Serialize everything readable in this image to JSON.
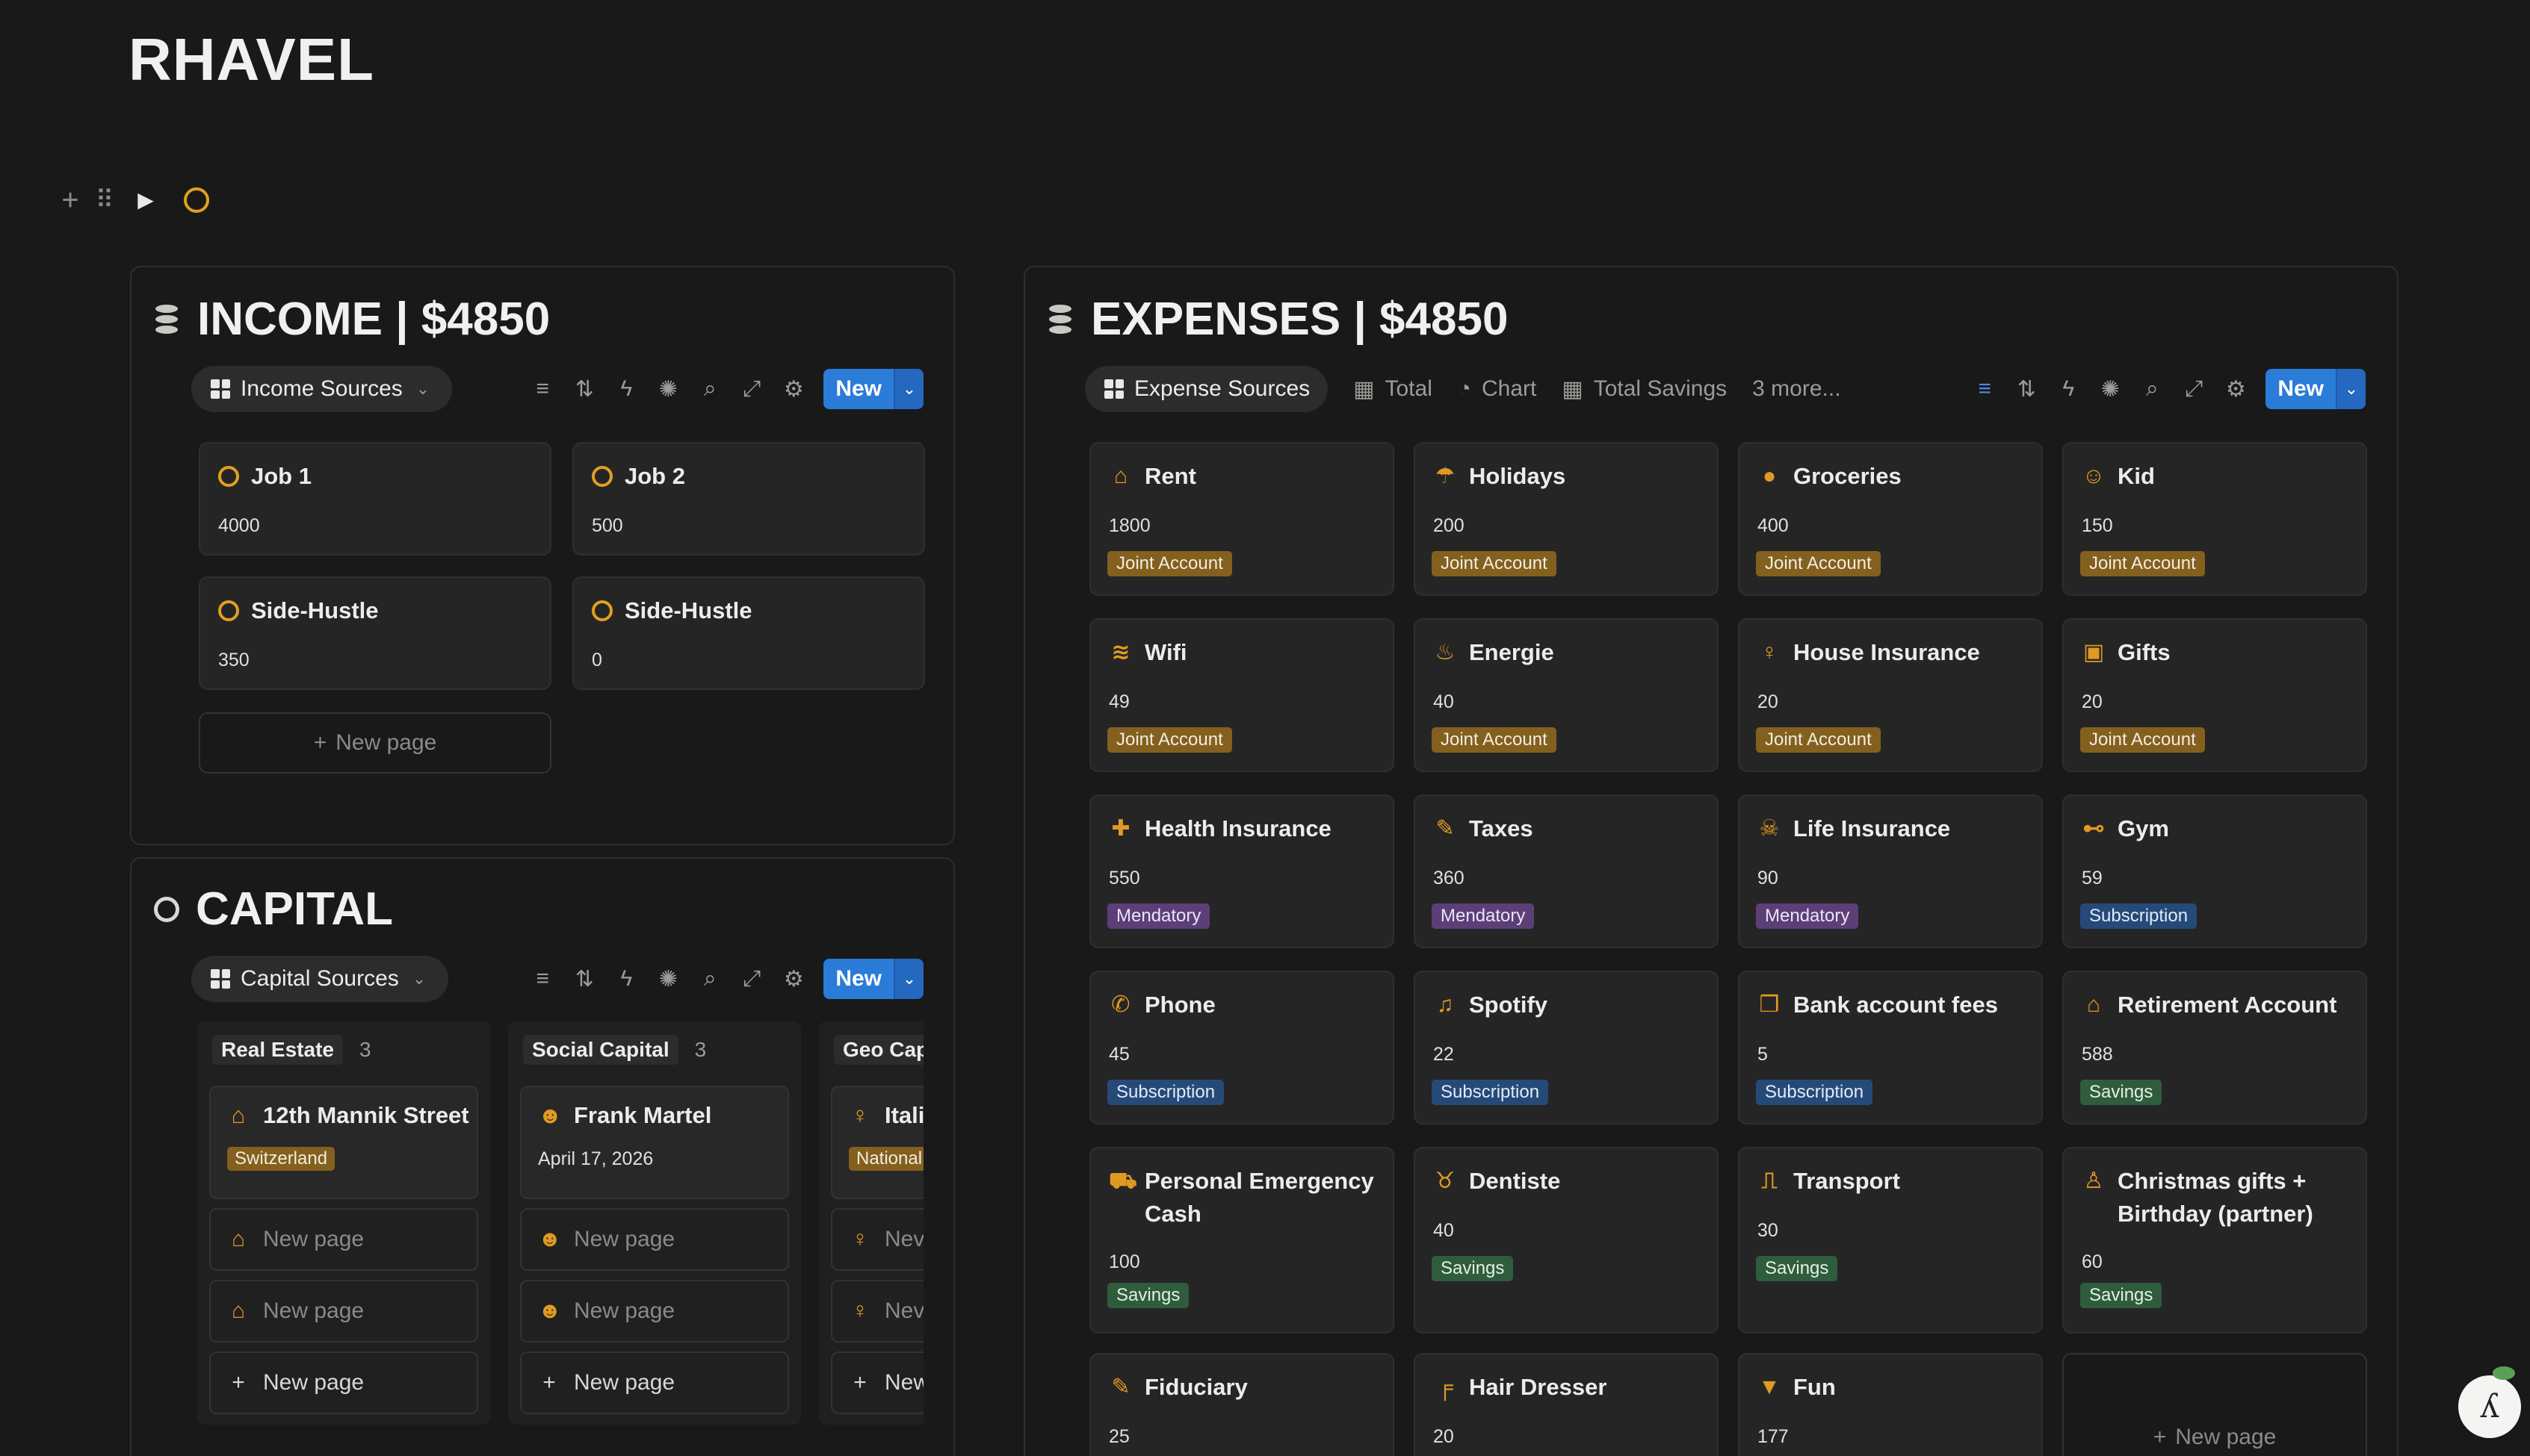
{
  "page": {
    "title": "RHAVEL"
  },
  "income": {
    "title": "INCOME | $4850",
    "view_label": "Income Sources",
    "new_label": "New",
    "cards": [
      {
        "title": "Job 1",
        "value": "4000"
      },
      {
        "title": "Job 2",
        "value": "500"
      },
      {
        "title": "Side-Hustle",
        "value": "350"
      },
      {
        "title": "Side-Hustle",
        "value": "0"
      }
    ],
    "new_page_label": "New page"
  },
  "expenses": {
    "title": "EXPENSES | $4850",
    "tabs": [
      {
        "label": "Expense Sources",
        "icon": "grid-icon"
      },
      {
        "label": "Total",
        "icon": "table-icon"
      },
      {
        "label": "Chart",
        "icon": "chart-icon"
      },
      {
        "label": "Total Savings",
        "icon": "table-icon"
      }
    ],
    "more_label": "3 more...",
    "new_label": "New",
    "cards": [
      {
        "title": "Rent",
        "value": "1800",
        "tag": "Joint Account",
        "kind": "joint",
        "icon": "house-icon",
        "glyph": "⌂"
      },
      {
        "title": "Holidays",
        "value": "200",
        "tag": "Joint Account",
        "kind": "joint",
        "icon": "palm-tree-icon",
        "glyph": "☂"
      },
      {
        "title": "Groceries",
        "value": "400",
        "tag": "Joint Account",
        "kind": "joint",
        "icon": "apple-icon",
        "glyph": "●"
      },
      {
        "title": "Kid",
        "value": "150",
        "tag": "Joint Account",
        "kind": "joint",
        "icon": "child-icon",
        "glyph": "☺"
      },
      {
        "title": "Wifi",
        "value": "49",
        "tag": "Joint Account",
        "kind": "joint",
        "icon": "wifi-icon",
        "glyph": "≋"
      },
      {
        "title": "Energie",
        "value": "40",
        "tag": "Joint Account",
        "kind": "joint",
        "icon": "flame-icon",
        "glyph": "♨"
      },
      {
        "title": "House Insurance",
        "value": "20",
        "tag": "Joint Account",
        "kind": "joint",
        "icon": "key-icon",
        "glyph": "♀"
      },
      {
        "title": "Gifts",
        "value": "20",
        "tag": "Joint Account",
        "kind": "joint",
        "icon": "gift-icon",
        "glyph": "▣"
      },
      {
        "title": "Health Insurance",
        "value": "550",
        "tag": "Mendatory",
        "kind": "mand",
        "icon": "first-aid-icon",
        "glyph": "✚"
      },
      {
        "title": "Taxes",
        "value": "360",
        "tag": "Mendatory",
        "kind": "mand",
        "icon": "pen-icon",
        "glyph": "✎"
      },
      {
        "title": "Life Insurance",
        "value": "90",
        "tag": "Mendatory",
        "kind": "mand",
        "icon": "skull-icon",
        "glyph": "☠"
      },
      {
        "title": "Gym",
        "value": "59",
        "tag": "Subscription",
        "kind": "sub",
        "icon": "dumbbell-icon",
        "glyph": "⊷"
      },
      {
        "title": "Phone",
        "value": "45",
        "tag": "Subscription",
        "kind": "sub",
        "icon": "phone-icon",
        "glyph": "✆"
      },
      {
        "title": "Spotify",
        "value": "22",
        "tag": "Subscription",
        "kind": "sub",
        "icon": "music-icon",
        "glyph": "♫"
      },
      {
        "title": "Bank account fees",
        "value": "5",
        "tag": "Subscription",
        "kind": "sub",
        "icon": "bookmark-icon",
        "glyph": "❒"
      },
      {
        "title": "Retirement Account",
        "value": "588",
        "tag": "Savings",
        "kind": "sav",
        "icon": "bank-icon",
        "glyph": "⌂"
      },
      {
        "title": "Personal Emergency Cash",
        "value": "100",
        "tag": "Savings",
        "kind": "sav",
        "icon": "ambulance-icon",
        "glyph": "⛟"
      },
      {
        "title": "Dentiste",
        "value": "40",
        "tag": "Savings",
        "kind": "sav",
        "icon": "tooth-icon",
        "glyph": "♉"
      },
      {
        "title": "Transport",
        "value": "30",
        "tag": "Savings",
        "kind": "sav",
        "icon": "train-icon",
        "glyph": "⎍"
      },
      {
        "title": "Christmas gifts + Birthday (partner)",
        "value": "60",
        "tag": "Savings",
        "kind": "sav",
        "icon": "person-icon",
        "glyph": "♙"
      },
      {
        "title": "Fiduciary",
        "value": "25",
        "tag": "",
        "kind": "",
        "icon": "pen-icon",
        "glyph": "✎"
      },
      {
        "title": "Hair Dresser",
        "value": "20",
        "tag": "",
        "kind": "",
        "icon": "comb-icon",
        "glyph": "╒"
      },
      {
        "title": "Fun",
        "value": "177",
        "tag": "",
        "kind": "",
        "icon": "cocktail-icon",
        "glyph": "▼"
      }
    ],
    "new_page_label": "New page"
  },
  "capital": {
    "title": "CAPITAL",
    "view_label": "Capital Sources",
    "new_label": "New",
    "columns": [
      {
        "label": "Real Estate",
        "count": "3",
        "card_title": "12th Mannik Street",
        "card_tag": "Switzerland",
        "icon": "house-icon",
        "glyph": "⌂"
      },
      {
        "label": "Social Capital",
        "count": "3",
        "card_title": "Frank Martel",
        "card_date": "April 17, 2026",
        "icon": "user-circle-icon",
        "glyph": "☻"
      },
      {
        "label": "Geo Cap",
        "count": "",
        "card_title": "Itali",
        "card_tag": "National",
        "icon": "map-pin-icon",
        "glyph": "♀"
      }
    ],
    "new_page_label": "New page",
    "new_short": "New",
    "new_page_short": "Nev"
  }
}
